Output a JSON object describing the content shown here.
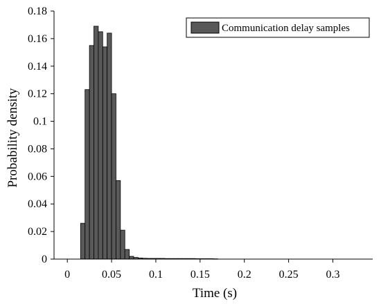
{
  "chart_data": {
    "type": "bar",
    "title": "",
    "xlabel": "Time (s)",
    "ylabel": "Probability density",
    "xlim": [
      -0.015,
      0.345
    ],
    "ylim": [
      0,
      0.18
    ],
    "x_ticks": [
      0,
      0.05,
      0.1,
      0.15,
      0.2,
      0.25,
      0.3
    ],
    "x_tick_labels": [
      "0",
      "0.05",
      "0.1",
      "0.15",
      "0.2",
      "0.25",
      "0.3"
    ],
    "y_ticks": [
      0,
      0.02,
      0.04,
      0.06,
      0.08,
      0.1,
      0.12,
      0.14,
      0.16,
      0.18
    ],
    "y_tick_labels": [
      "0",
      "0.02",
      "0.04",
      "0.06",
      "0.08",
      "0.1",
      "0.12",
      "0.14",
      "0.16",
      "0.18"
    ],
    "grid": false,
    "legend_position": "top-right",
    "bin_width": 0.005,
    "series": [
      {
        "name": "Communication delay samples",
        "color": "#595959",
        "bin_starts": [
          0.015,
          0.02,
          0.025,
          0.03,
          0.035,
          0.04,
          0.045,
          0.05,
          0.055,
          0.06,
          0.065,
          0.07,
          0.075,
          0.08,
          0.085,
          0.09,
          0.095,
          0.1,
          0.105,
          0.11,
          0.115,
          0.12,
          0.125,
          0.13,
          0.135,
          0.14,
          0.145,
          0.15,
          0.155,
          0.16,
          0.165
        ],
        "values": [
          0.026,
          0.123,
          0.155,
          0.169,
          0.165,
          0.154,
          0.164,
          0.12,
          0.057,
          0.021,
          0.007,
          0.002,
          0.0012,
          0.0008,
          0.0006,
          0.0005,
          0.0005,
          0.0005,
          0.0005,
          0.0004,
          0.0004,
          0.0004,
          0.0004,
          0.0004,
          0.0004,
          0.0004,
          0.0003,
          0.0003,
          0.0003,
          0.0003,
          0.0002
        ]
      }
    ]
  }
}
